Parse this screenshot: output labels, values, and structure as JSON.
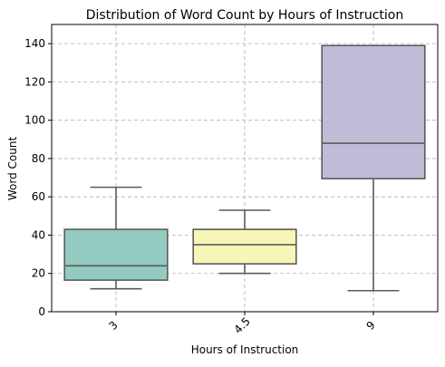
{
  "chart_data": {
    "type": "box",
    "title": "Distribution of Word Count by Hours of Instruction",
    "xlabel": "Hours of Instruction",
    "ylabel": "Word Count",
    "ylim": [
      0,
      150
    ],
    "yticks": [
      0,
      20,
      40,
      60,
      80,
      100,
      120,
      140
    ],
    "categories": [
      "3",
      "4.5",
      "9"
    ],
    "grid": true,
    "colors": [
      "#94cbc0",
      "#f7f6b8",
      "#c0bcd7"
    ],
    "boxes": [
      {
        "category": "3",
        "min": 12,
        "q1": 16.5,
        "median": 24,
        "q3": 43,
        "max": 65
      },
      {
        "category": "4.5",
        "min": 20,
        "q1": 25,
        "median": 35,
        "q3": 43,
        "max": 53
      },
      {
        "category": "9",
        "min": 11,
        "q1": 69.5,
        "median": 88,
        "q3": 139,
        "max": 139
      }
    ]
  }
}
